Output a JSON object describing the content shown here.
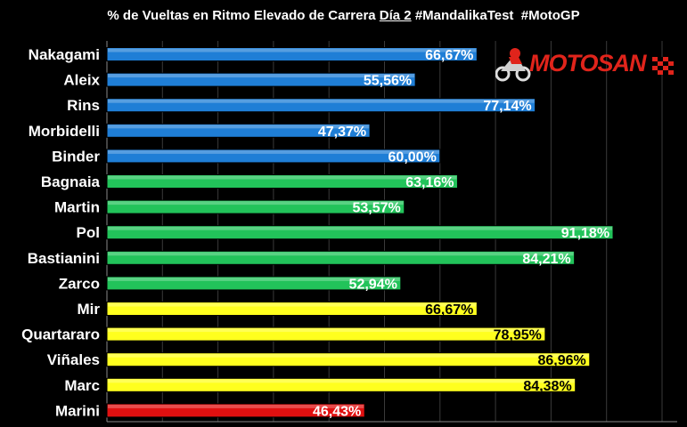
{
  "title_parts": {
    "plain": "% de Vueltas en Ritmo Elevado de Carrera ",
    "underlined": "Día 2",
    "tags": " #MandalikaTest  #MotoGP"
  },
  "logo_text": "MOTOSAN",
  "colors": {
    "background": "#000000",
    "grid": "#3a3a3a",
    "blue": "#1f7ed6",
    "green": "#22c35a",
    "yellow": "#ffff1e",
    "red": "#e01010",
    "label_white": "#ffffff",
    "label_dark": "#000000"
  },
  "chart_data": {
    "type": "bar",
    "orientation": "horizontal",
    "value_format": "percent-comma",
    "xlim": [
      0,
      100
    ],
    "grid": true,
    "categories": [
      "Nakagami",
      "Aleix",
      "Rins",
      "Morbidelli",
      "Binder",
      "Bagnaia",
      "Martin",
      "Pol",
      "Bastianini",
      "Zarco",
      "Mir",
      "Quartararo",
      "Viñales",
      "Marc",
      "Marini"
    ],
    "values": [
      66.67,
      55.56,
      77.14,
      47.37,
      60.0,
      63.16,
      53.57,
      91.18,
      84.21,
      52.94,
      66.67,
      78.95,
      86.96,
      84.38,
      46.43
    ],
    "value_labels": [
      "66,67%",
      "55,56%",
      "77,14%",
      "47,37%",
      "60,00%",
      "63,16%",
      "53,57%",
      "91,18%",
      "84,21%",
      "52,94%",
      "66,67%",
      "78,95%",
      "86,96%",
      "84,38%",
      "46,43%"
    ],
    "bar_colors": [
      "blue",
      "blue",
      "blue",
      "blue",
      "blue",
      "green",
      "green",
      "green",
      "green",
      "green",
      "yellow",
      "yellow",
      "yellow",
      "yellow",
      "red"
    ]
  }
}
